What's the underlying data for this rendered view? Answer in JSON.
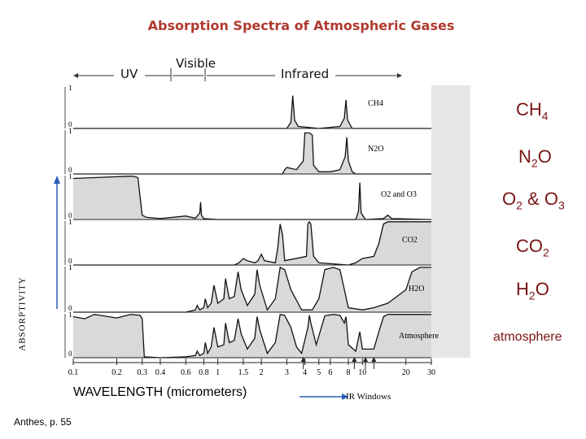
{
  "title": "Absorption Spectra of Atmospheric Gases",
  "bands": {
    "uv": "UV",
    "visible": "Visible",
    "infrared": "Infrared"
  },
  "panel_labels": {
    "ch4": "CH4",
    "n2o": "N2O",
    "o2o3": "O2 and O3",
    "co2": "CO2",
    "h2o": "H2O",
    "atm": "Atmosphere"
  },
  "right_labels": {
    "ch4": {
      "base": "CH",
      "sub": "4"
    },
    "n2o": {
      "a": "N",
      "sub": "2",
      "b": "O"
    },
    "o2o3": {
      "a": "O",
      "sub1": "2",
      "mid": " & O",
      "sub2": "3"
    },
    "co2": {
      "a": "CO",
      "sub": "2"
    },
    "h2o": {
      "a": "H",
      "sub": "2",
      "b": "O"
    },
    "atm": "atmosphere"
  },
  "y_axis_label": "ABSORPTIVITY",
  "y_ticks": [
    "1",
    "0"
  ],
  "x_axis_title": "WAVELENGTH (micrometers)",
  "ir_windows_label": "IR Windows",
  "source": "Anthes, p. 55",
  "chart_data": {
    "type": "area",
    "x_scale": "log",
    "x_ticks": [
      0.1,
      0.2,
      0.3,
      0.4,
      0.6,
      0.8,
      1,
      1.5,
      2,
      3,
      4,
      5,
      6,
      8,
      10,
      20,
      30
    ],
    "x_tick_labels": [
      "0.1",
      "0.2",
      "0.3",
      "0.4",
      "0.6",
      "0.8",
      "1",
      "1.5",
      "2",
      "3",
      "4",
      "5",
      "6",
      "8",
      "10",
      "20",
      "30"
    ],
    "xlim": [
      0.1,
      30
    ],
    "ylim": [
      0,
      1
    ],
    "series": [
      {
        "name": "CH4",
        "x": [
          0.1,
          3.0,
          3.2,
          3.3,
          3.4,
          3.6,
          5.0,
          7.0,
          7.5,
          7.7,
          7.9,
          8.5,
          30
        ],
        "y": [
          0,
          0,
          0.15,
          0.8,
          0.2,
          0.05,
          0,
          0.05,
          0.25,
          0.7,
          0.2,
          0,
          0
        ]
      },
      {
        "name": "N2O",
        "x": [
          0.1,
          2.8,
          2.9,
          3.0,
          3.5,
          3.9,
          4.0,
          4.3,
          4.5,
          4.6,
          5.0,
          6.0,
          7.0,
          7.6,
          7.8,
          8.0,
          8.5,
          9.0,
          30
        ],
        "y": [
          0,
          0,
          0.1,
          0.15,
          0.1,
          0.3,
          0.95,
          0.95,
          0.9,
          0.2,
          0.05,
          0.05,
          0.1,
          0.4,
          0.85,
          0.3,
          0.05,
          0,
          0
        ]
      },
      {
        "name": "O2 and O3",
        "x": [
          0.1,
          0.24,
          0.26,
          0.28,
          0.3,
          0.32,
          0.4,
          0.6,
          0.7,
          0.75,
          0.76,
          0.77,
          0.8,
          1.0,
          9.0,
          9.4,
          9.6,
          9.8,
          10.5,
          14.0,
          15.0,
          16.0,
          30
        ],
        "y": [
          0.95,
          1.0,
          1.0,
          0.97,
          0.1,
          0.05,
          0.02,
          0.08,
          0.03,
          0.15,
          0.4,
          0.1,
          0.02,
          0,
          0,
          0.2,
          0.85,
          0.15,
          0,
          0.02,
          0.1,
          0.02,
          0
        ]
      },
      {
        "name": "CO2",
        "x": [
          0.1,
          1.3,
          1.4,
          1.5,
          1.6,
          1.8,
          1.9,
          2.0,
          2.1,
          2.5,
          2.6,
          2.7,
          2.8,
          2.9,
          4.1,
          4.2,
          4.3,
          4.4,
          4.6,
          5.0,
          8.0,
          9.0,
          10.0,
          12.0,
          13.0,
          14.0,
          15.0,
          16.0,
          18.0,
          20.0,
          30
        ],
        "y": [
          0,
          0,
          0.05,
          0.15,
          0.1,
          0.05,
          0.1,
          0.25,
          0.1,
          0.05,
          0.4,
          0.95,
          0.7,
          0.1,
          0.2,
          0.95,
          1.0,
          0.95,
          0.2,
          0.05,
          0,
          0.05,
          0.15,
          0.2,
          0.5,
          0.95,
          1.0,
          1.0,
          1.0,
          1.0,
          1.0
        ]
      },
      {
        "name": "H2O",
        "x": [
          0.1,
          0.6,
          0.7,
          0.72,
          0.75,
          0.8,
          0.82,
          0.85,
          0.9,
          0.94,
          1.0,
          1.1,
          1.13,
          1.2,
          1.3,
          1.38,
          1.45,
          1.6,
          1.8,
          1.87,
          1.95,
          2.2,
          2.5,
          2.7,
          2.9,
          3.2,
          3.8,
          4.5,
          5.0,
          5.5,
          6.3,
          7.0,
          7.5,
          8.0,
          10.0,
          12.0,
          15.0,
          20.0,
          22.0,
          25.0,
          30
        ],
        "y": [
          0,
          0,
          0.05,
          0.15,
          0.05,
          0.1,
          0.3,
          0.1,
          0.2,
          0.6,
          0.2,
          0.3,
          0.75,
          0.3,
          0.35,
          0.9,
          0.5,
          0.15,
          0.4,
          0.95,
          0.6,
          0.05,
          0.3,
          1.0,
          0.95,
          0.5,
          0.05,
          0.05,
          0.3,
          0.95,
          1.0,
          0.95,
          0.5,
          0.1,
          0.05,
          0.1,
          0.2,
          0.5,
          0.9,
          1.0,
          1.0
        ]
      },
      {
        "name": "Atmosphere",
        "x": [
          0.1,
          0.12,
          0.14,
          0.16,
          0.2,
          0.25,
          0.29,
          0.3,
          0.31,
          0.4,
          0.6,
          0.7,
          0.72,
          0.75,
          0.8,
          0.82,
          0.85,
          0.9,
          0.94,
          1.0,
          1.1,
          1.13,
          1.2,
          1.3,
          1.38,
          1.45,
          1.6,
          1.8,
          1.87,
          1.95,
          2.2,
          2.5,
          2.7,
          2.9,
          3.2,
          3.5,
          3.8,
          4.2,
          4.3,
          4.4,
          4.8,
          5.5,
          6.3,
          7.0,
          7.5,
          7.7,
          8.0,
          9.0,
          9.6,
          10.0,
          12.0,
          13.0,
          14.0,
          15.0,
          18.0,
          30
        ],
        "y": [
          0.95,
          0.9,
          1.0,
          0.97,
          0.92,
          1.0,
          0.98,
          0.9,
          0.02,
          0,
          0.02,
          0.05,
          0.15,
          0.05,
          0.1,
          0.35,
          0.1,
          0.25,
          0.7,
          0.25,
          0.3,
          0.8,
          0.35,
          0.4,
          0.9,
          0.55,
          0.2,
          0.45,
          0.95,
          0.65,
          0.1,
          0.35,
          1.0,
          0.98,
          0.7,
          0.25,
          0.1,
          0.7,
          0.98,
          0.8,
          0.3,
          0.97,
          1.0,
          0.98,
          0.8,
          0.95,
          0.3,
          0.15,
          0.6,
          0.2,
          0.2,
          0.6,
          0.95,
          1.0,
          1.0,
          1.0
        ]
      }
    ],
    "annotations": [
      "IR Windows"
    ]
  }
}
